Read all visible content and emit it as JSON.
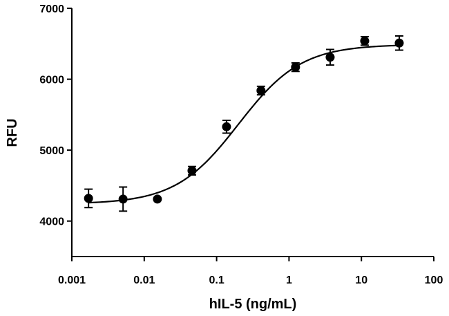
{
  "chart_data": {
    "type": "scatter",
    "title": "",
    "xlabel": "hIL-5 (ng/mL)",
    "ylabel": "RFU",
    "x_scale": "log",
    "xlim": [
      0.001,
      100
    ],
    "ylim": [
      3500,
      7000
    ],
    "x_ticks": [
      {
        "value": 0.001,
        "label": "0.001"
      },
      {
        "value": 0.01,
        "label": "0.01"
      },
      {
        "value": 0.1,
        "label": "0.1"
      },
      {
        "value": 1,
        "label": "1"
      },
      {
        "value": 10,
        "label": "10"
      },
      {
        "value": 100,
        "label": "100"
      }
    ],
    "y_ticks": [
      {
        "value": 4000,
        "label": "4000"
      },
      {
        "value": 5000,
        "label": "5000"
      },
      {
        "value": 6000,
        "label": "6000"
      },
      {
        "value": 7000,
        "label": "7000"
      }
    ],
    "points": [
      {
        "x": 0.0017,
        "y": 4320,
        "err": 130
      },
      {
        "x": 0.0051,
        "y": 4310,
        "err": 170
      },
      {
        "x": 0.0152,
        "y": 4310,
        "err": 0
      },
      {
        "x": 0.0457,
        "y": 4710,
        "err": 60
      },
      {
        "x": 0.137,
        "y": 5330,
        "err": 90
      },
      {
        "x": 0.41,
        "y": 5840,
        "err": 60
      },
      {
        "x": 1.23,
        "y": 6170,
        "err": 60
      },
      {
        "x": 3.7,
        "y": 6310,
        "err": 110
      },
      {
        "x": 11.1,
        "y": 6540,
        "err": 60
      },
      {
        "x": 33.3,
        "y": 6510,
        "err": 100
      }
    ],
    "fit": {
      "type": "4PL",
      "bottom": 4240,
      "top": 6490,
      "ec50": 0.2,
      "hill": 1.0
    },
    "grid": false,
    "legend": "none"
  }
}
